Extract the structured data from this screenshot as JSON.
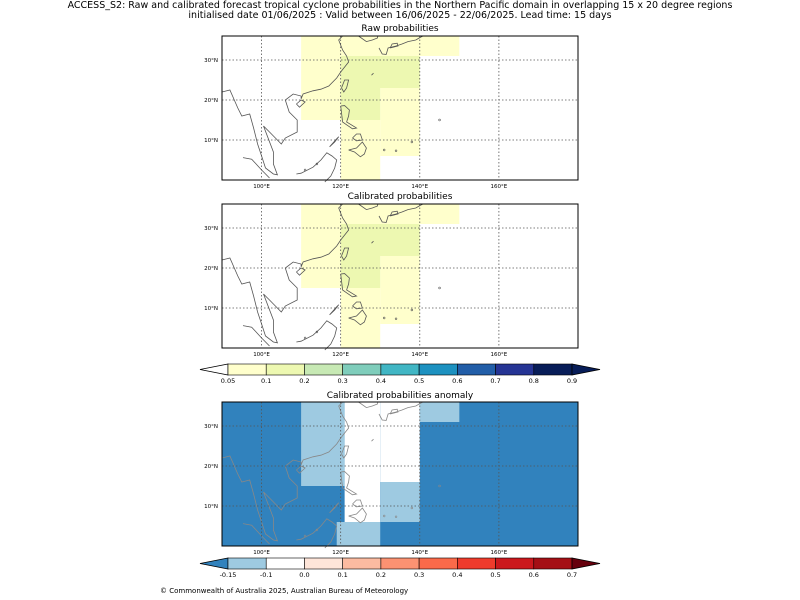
{
  "header": {
    "title_line1": "ACCESS_S2: Raw and calibrated forecast tropical cyclone probabilities in the Northern Pacific domain in overlapping 15 x 20 degree regions",
    "title_line2": "initialised date 01/06/2025 :  Valid between 16/06/2025 - 22/06/2025. Lead time: 15 days"
  },
  "footer": {
    "copyright": "© Commonwealth of Australia 2025, Australian Bureau of Meteorology"
  },
  "chart_data": [
    {
      "type": "heatmap",
      "title": "Raw probabilities",
      "xlim": [
        90,
        180
      ],
      "ylim": [
        0,
        36
      ],
      "x_ticks": [
        100,
        120,
        140,
        160
      ],
      "x_tick_labels": [
        "100°E",
        "120°E",
        "140°E",
        "160°E"
      ],
      "y_ticks": [
        10,
        20,
        30
      ],
      "y_tick_labels": [
        "10°N",
        "20°N",
        "30°N"
      ],
      "grid": true,
      "cells": [
        {
          "lon": [
            110,
            150
          ],
          "lat": [
            31,
            36
          ],
          "bin": "0.05-0.1"
        },
        {
          "lon": [
            110,
            120
          ],
          "lat": [
            15,
            31
          ],
          "bin": "0.05-0.1"
        },
        {
          "lon": [
            120,
            130
          ],
          "lat": [
            0,
            15
          ],
          "bin": "0.05-0.1"
        },
        {
          "lon": [
            130,
            140
          ],
          "lat": [
            6,
            23
          ],
          "bin": "0.05-0.1"
        },
        {
          "lon": [
            120,
            140
          ],
          "lat": [
            23,
            31
          ],
          "bin": "0.1-0.2"
        },
        {
          "lon": [
            120,
            130
          ],
          "lat": [
            15,
            23
          ],
          "bin": "0.1-0.2"
        }
      ]
    },
    {
      "type": "heatmap",
      "title": "Calibrated probabilities",
      "xlim": [
        90,
        180
      ],
      "ylim": [
        0,
        36
      ],
      "x_ticks": [
        100,
        120,
        140,
        160
      ],
      "x_tick_labels": [
        "100°E",
        "120°E",
        "140°E",
        "160°E"
      ],
      "y_ticks": [
        10,
        20,
        30
      ],
      "y_tick_labels": [
        "10°N",
        "20°N",
        "30°N"
      ],
      "grid": true,
      "cells": [
        {
          "lon": [
            110,
            150
          ],
          "lat": [
            31,
            36
          ],
          "bin": "0.05-0.1"
        },
        {
          "lon": [
            110,
            120
          ],
          "lat": [
            15,
            31
          ],
          "bin": "0.05-0.1"
        },
        {
          "lon": [
            120,
            130
          ],
          "lat": [
            0,
            15
          ],
          "bin": "0.05-0.1"
        },
        {
          "lon": [
            130,
            140
          ],
          "lat": [
            6,
            23
          ],
          "bin": "0.05-0.1"
        },
        {
          "lon": [
            120,
            140
          ],
          "lat": [
            23,
            31
          ],
          "bin": "0.1-0.2"
        },
        {
          "lon": [
            120,
            130
          ],
          "lat": [
            15,
            23
          ],
          "bin": "0.1-0.2"
        }
      ],
      "colorbar": {
        "ticks": [
          "0.05",
          "0.1",
          "0.2",
          "0.3",
          "0.4",
          "0.5",
          "0.6",
          "0.7",
          "0.8",
          "0.9"
        ],
        "colors": [
          "#ffffcc",
          "#edf8b1",
          "#c7e9b4",
          "#7fcdbb",
          "#41b6c4",
          "#1d91c0",
          "#225ea8",
          "#253494",
          "#081d58"
        ],
        "under_color": "#ffffff",
        "over_color": "#081d58"
      }
    },
    {
      "type": "heatmap",
      "title": "Calibrated probabilities anomaly",
      "xlim": [
        90,
        180
      ],
      "ylim": [
        0,
        36
      ],
      "x_ticks": [
        100,
        120,
        140,
        160
      ],
      "x_tick_labels": [
        "100°E",
        "120°E",
        "140°E",
        "160°E"
      ],
      "y_ticks": [
        10,
        20,
        30
      ],
      "y_tick_labels": [
        "10°N",
        "20°N",
        "30°N"
      ],
      "grid": true,
      "background_bin": "< -0.15",
      "cells": [
        {
          "lon": [
            110,
            121
          ],
          "lat": [
            15,
            36
          ],
          "bin": "-0.15 to -0.1"
        },
        {
          "lon": [
            121,
            130
          ],
          "lat": [
            6,
            36
          ],
          "bin": "-0.1 to 0.0"
        },
        {
          "lon": [
            130,
            140
          ],
          "lat": [
            16,
            36
          ],
          "bin": "-0.1 to 0.0"
        },
        {
          "lon": [
            130,
            140
          ],
          "lat": [
            6,
            16
          ],
          "bin": "-0.15 to -0.1"
        },
        {
          "lon": [
            140,
            150
          ],
          "lat": [
            31,
            36
          ],
          "bin": "-0.15 to -0.1"
        },
        {
          "lon": [
            119,
            130
          ],
          "lat": [
            0,
            6
          ],
          "bin": "-0.15 to -0.1"
        }
      ],
      "colorbar": {
        "ticks": [
          "-0.15",
          "-0.1",
          "0.0",
          "0.1",
          "0.2",
          "0.3",
          "0.4",
          "0.5",
          "0.6",
          "0.7"
        ],
        "colors": [
          "#9ecae1",
          "#ffffff",
          "#fee5d9",
          "#fcbba1",
          "#fc9272",
          "#fb6a4a",
          "#ef3b2c",
          "#cb181d",
          "#a50f15"
        ],
        "under_color": "#3182bd",
        "over_color": "#67000d"
      }
    }
  ]
}
